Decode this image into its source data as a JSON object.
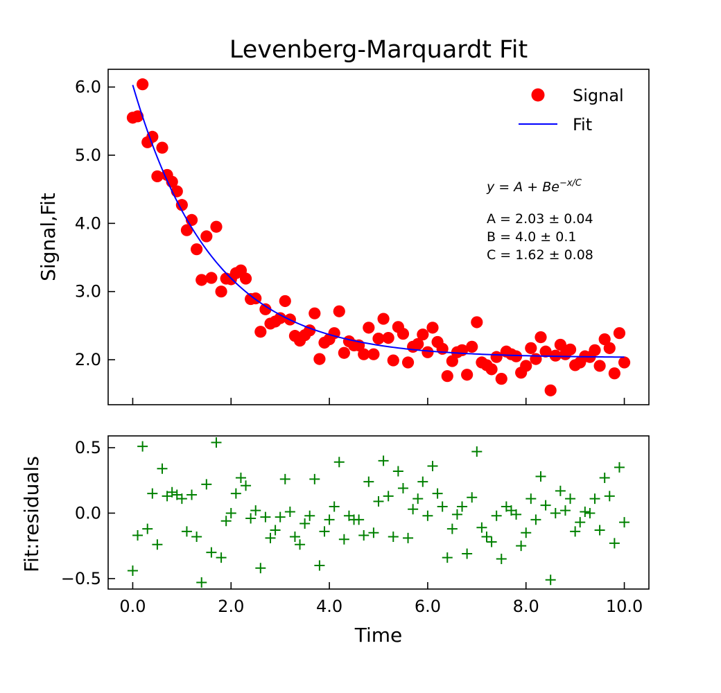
{
  "colors": {
    "signal": "#ff0000",
    "fit": "#0000ff",
    "residuals": "#008000",
    "axes": "#000000",
    "background": "#ffffff"
  },
  "chart_data": [
    {
      "type": "scatter",
      "panel": "main",
      "title": "Levenberg-Marquardt Fit",
      "xlabel": "",
      "ylabel": "Signal,Fit",
      "xlim": [
        -0.5,
        10.5
      ],
      "ylim": [
        1.34,
        6.26
      ],
      "xticks": [
        0,
        2,
        4,
        6,
        8,
        10
      ],
      "yticks": [
        2.0,
        3.0,
        4.0,
        5.0,
        6.0
      ],
      "ytick_labels": [
        "2.0",
        "3.0",
        "4.0",
        "5.0",
        "6.0"
      ],
      "grid": false,
      "legend_position": "top-right",
      "legend": [
        {
          "label": "Signal",
          "marker": "circle"
        },
        {
          "label": "Fit",
          "marker": "line"
        }
      ],
      "annotation": {
        "equation": "y = A + Be",
        "exponent": "−x/C",
        "params": [
          "A = 2.03 ± 0.04",
          "B = 4.0 ± 0.1",
          "C = 1.62 ± 0.08"
        ]
      },
      "series": [
        {
          "name": "Signal",
          "style": "markers",
          "x": [
            0.0,
            0.1,
            0.2,
            0.3,
            0.4,
            0.5,
            0.6,
            0.7,
            0.8,
            0.9,
            1.0,
            1.1,
            1.2,
            1.3,
            1.4,
            1.5,
            1.6,
            1.7,
            1.8,
            1.9,
            2.0,
            2.1,
            2.2,
            2.3,
            2.4,
            2.5,
            2.6,
            2.7,
            2.8,
            2.9,
            3.0,
            3.1,
            3.2,
            3.3,
            3.4,
            3.5,
            3.6,
            3.7,
            3.8,
            3.9,
            4.0,
            4.1,
            4.2,
            4.3,
            4.4,
            4.5,
            4.6,
            4.7,
            4.8,
            4.9,
            5.0,
            5.1,
            5.2,
            5.3,
            5.4,
            5.5,
            5.6,
            5.7,
            5.8,
            5.9,
            6.0,
            6.1,
            6.2,
            6.3,
            6.4,
            6.5,
            6.6,
            6.7,
            6.8,
            6.9,
            7.0,
            7.1,
            7.2,
            7.3,
            7.4,
            7.5,
            7.6,
            7.7,
            7.8,
            7.9,
            8.0,
            8.1,
            8.2,
            8.3,
            8.4,
            8.5,
            8.6,
            8.7,
            8.8,
            8.9,
            9.0,
            9.1,
            9.2,
            9.3,
            9.4,
            9.5,
            9.6,
            9.7,
            9.8,
            9.9,
            10.0
          ],
          "y": [
            5.55,
            5.57,
            6.04,
            5.19,
            5.27,
            4.69,
            5.11,
            4.71,
            4.61,
            4.47,
            4.27,
            3.9,
            4.05,
            3.62,
            3.17,
            3.81,
            3.2,
            3.95,
            3.0,
            3.19,
            3.18,
            3.27,
            3.31,
            3.19,
            2.89,
            2.9,
            2.41,
            2.74,
            2.53,
            2.56,
            2.61,
            2.86,
            2.59,
            2.35,
            2.28,
            2.36,
            2.43,
            2.68,
            2.01,
            2.25,
            2.3,
            2.39,
            2.71,
            2.1,
            2.27,
            2.21,
            2.21,
            2.08,
            2.47,
            2.08,
            2.31,
            2.6,
            2.32,
            1.99,
            2.48,
            2.38,
            1.96,
            2.19,
            2.23,
            2.37,
            2.11,
            2.47,
            2.26,
            2.16,
            1.76,
            1.98,
            2.11,
            2.14,
            1.78,
            2.19,
            2.55,
            1.96,
            1.92,
            1.86,
            2.04,
            1.72,
            2.12,
            2.08,
            2.05,
            1.81,
            1.91,
            2.17,
            2.01,
            2.33,
            2.12,
            1.55,
            2.06,
            2.22,
            2.08,
            2.15,
            1.92,
            1.96,
            2.05,
            2.04,
            2.14,
            1.91,
            2.3,
            2.17,
            1.8,
            2.39,
            1.96
          ]
        },
        {
          "name": "Fit",
          "style": "line",
          "A": 2.03,
          "B": 4.0,
          "C": 1.62
        }
      ]
    },
    {
      "type": "scatter",
      "panel": "residuals",
      "xlabel": "Time",
      "ylabel": "Fit:residuals",
      "xlim": [
        -0.5,
        10.5
      ],
      "ylim": [
        -0.58,
        0.59
      ],
      "xticks": [
        0,
        2,
        4,
        6,
        8,
        10
      ],
      "xtick_labels": [
        "0.0",
        "2.0",
        "4.0",
        "6.0",
        "8.0",
        "10.0"
      ],
      "yticks": [
        -0.5,
        0.0,
        0.5
      ],
      "ytick_labels": [
        "−0.5",
        "0.0",
        "0.5"
      ],
      "grid": false,
      "series": [
        {
          "name": "",
          "style": "plus-markers",
          "x": [
            0.0,
            0.1,
            0.2,
            0.3,
            0.4,
            0.5,
            0.6,
            0.7,
            0.8,
            0.9,
            1.0,
            1.1,
            1.2,
            1.3,
            1.4,
            1.5,
            1.6,
            1.7,
            1.8,
            1.9,
            2.0,
            2.1,
            2.2,
            2.3,
            2.4,
            2.5,
            2.6,
            2.7,
            2.8,
            2.9,
            3.0,
            3.1,
            3.2,
            3.3,
            3.4,
            3.5,
            3.6,
            3.7,
            3.8,
            3.9,
            4.0,
            4.1,
            4.2,
            4.3,
            4.4,
            4.5,
            4.6,
            4.7,
            4.8,
            4.9,
            5.0,
            5.1,
            5.2,
            5.3,
            5.4,
            5.5,
            5.6,
            5.7,
            5.8,
            5.9,
            6.0,
            6.1,
            6.2,
            6.3,
            6.4,
            6.5,
            6.6,
            6.7,
            6.8,
            6.9,
            7.0,
            7.1,
            7.2,
            7.3,
            7.4,
            7.5,
            7.6,
            7.7,
            7.8,
            7.9,
            8.0,
            8.1,
            8.2,
            8.3,
            8.4,
            8.5,
            8.6,
            8.7,
            8.8,
            8.9,
            9.0,
            9.1,
            9.2,
            9.3,
            9.4,
            9.5,
            9.6,
            9.7,
            9.8,
            9.9,
            10.0
          ],
          "y": [
            -0.44,
            -0.17,
            0.51,
            -0.12,
            0.15,
            -0.24,
            0.34,
            0.13,
            0.16,
            0.14,
            0.11,
            -0.14,
            0.14,
            -0.18,
            -0.53,
            0.22,
            -0.3,
            0.54,
            -0.34,
            -0.06,
            0.0,
            0.15,
            0.27,
            0.21,
            -0.04,
            0.02,
            -0.42,
            -0.03,
            -0.19,
            -0.13,
            -0.03,
            0.26,
            0.01,
            -0.18,
            -0.24,
            -0.08,
            -0.02,
            0.26,
            -0.4,
            -0.14,
            -0.05,
            0.05,
            0.39,
            -0.2,
            -0.02,
            -0.05,
            -0.05,
            -0.17,
            0.24,
            -0.15,
            0.09,
            0.4,
            0.13,
            -0.18,
            0.32,
            0.19,
            -0.19,
            0.03,
            0.11,
            0.24,
            -0.02,
            0.36,
            0.15,
            0.05,
            -0.34,
            -0.12,
            -0.01,
            0.05,
            -0.31,
            0.12,
            0.47,
            -0.11,
            -0.18,
            -0.22,
            -0.02,
            -0.35,
            0.05,
            0.02,
            -0.01,
            -0.25,
            -0.15,
            0.11,
            -0.05,
            0.28,
            0.06,
            -0.51,
            0.0,
            0.17,
            0.02,
            0.11,
            -0.14,
            -0.07,
            0.01,
            0.0,
            0.11,
            -0.13,
            0.27,
            0.13,
            -0.23,
            0.35,
            -0.07
          ]
        }
      ]
    }
  ]
}
